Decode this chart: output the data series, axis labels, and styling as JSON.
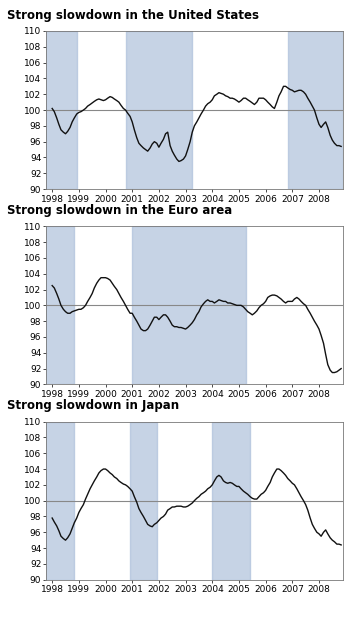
{
  "titles": [
    "Strong slowdown in the United States",
    "Strong slowdown in the Euro area",
    "Strong slowdown in Japan"
  ],
  "ylim": [
    90,
    110
  ],
  "yticks": [
    90,
    92,
    94,
    96,
    98,
    100,
    102,
    104,
    106,
    108,
    110
  ],
  "xlim": [
    1997.75,
    2008.9
  ],
  "xticks": [
    1998,
    1999,
    2000,
    2001,
    2002,
    2003,
    2004,
    2005,
    2006,
    2007,
    2008
  ],
  "shade_color": "#a8bcd8",
  "line_color": "#111111",
  "hline_color": "#888888",
  "bg_color": "#ffffff",
  "panel_bg": "#ffffff",
  "shading": [
    [
      [
        1997.75,
        1998.92
      ],
      [
        2000.75,
        2003.25
      ],
      [
        2006.83,
        2008.9
      ]
    ],
    [
      [
        1997.75,
        1998.83
      ],
      [
        2001.0,
        2005.25
      ]
    ],
    [
      [
        1997.75,
        1998.83
      ],
      [
        2000.92,
        2001.92
      ],
      [
        2004.0,
        2005.42
      ]
    ]
  ],
  "us_data": {
    "x": [
      1998.0,
      1998.08,
      1998.17,
      1998.25,
      1998.33,
      1998.42,
      1998.5,
      1998.58,
      1998.67,
      1998.75,
      1998.83,
      1998.92,
      1999.0,
      1999.08,
      1999.17,
      1999.25,
      1999.33,
      1999.42,
      1999.5,
      1999.58,
      1999.67,
      1999.75,
      1999.83,
      1999.92,
      2000.0,
      2000.08,
      2000.17,
      2000.25,
      2000.33,
      2000.42,
      2000.5,
      2000.58,
      2000.67,
      2000.75,
      2000.83,
      2000.92,
      2001.0,
      2001.08,
      2001.17,
      2001.25,
      2001.33,
      2001.42,
      2001.5,
      2001.58,
      2001.67,
      2001.75,
      2001.83,
      2001.92,
      2002.0,
      2002.08,
      2002.17,
      2002.25,
      2002.33,
      2002.42,
      2002.5,
      2002.58,
      2002.67,
      2002.75,
      2002.83,
      2002.92,
      2003.0,
      2003.08,
      2003.17,
      2003.25,
      2003.33,
      2003.42,
      2003.5,
      2003.58,
      2003.67,
      2003.75,
      2003.83,
      2003.92,
      2004.0,
      2004.08,
      2004.17,
      2004.25,
      2004.33,
      2004.42,
      2004.5,
      2004.58,
      2004.67,
      2004.75,
      2004.83,
      2004.92,
      2005.0,
      2005.08,
      2005.17,
      2005.25,
      2005.33,
      2005.42,
      2005.5,
      2005.58,
      2005.67,
      2005.75,
      2005.83,
      2005.92,
      2006.0,
      2006.08,
      2006.17,
      2006.25,
      2006.33,
      2006.42,
      2006.5,
      2006.58,
      2006.67,
      2006.75,
      2006.83,
      2006.92,
      2007.0,
      2007.08,
      2007.17,
      2007.25,
      2007.33,
      2007.42,
      2007.5,
      2007.58,
      2007.67,
      2007.75,
      2007.83,
      2007.92,
      2008.0,
      2008.08,
      2008.17,
      2008.25,
      2008.33,
      2008.42,
      2008.5,
      2008.58,
      2008.67,
      2008.75,
      2008.83
    ],
    "y": [
      100.2,
      99.8,
      99.0,
      98.2,
      97.5,
      97.2,
      97.0,
      97.3,
      97.8,
      98.5,
      99.0,
      99.5,
      99.7,
      99.8,
      100.0,
      100.2,
      100.5,
      100.7,
      100.9,
      101.1,
      101.3,
      101.4,
      101.3,
      101.2,
      101.3,
      101.5,
      101.7,
      101.6,
      101.4,
      101.2,
      101.0,
      100.6,
      100.2,
      100.0,
      99.6,
      99.2,
      98.5,
      97.5,
      96.5,
      95.8,
      95.5,
      95.2,
      95.0,
      94.8,
      95.2,
      95.7,
      96.0,
      95.8,
      95.3,
      95.8,
      96.3,
      97.0,
      97.2,
      95.5,
      94.8,
      94.3,
      93.8,
      93.5,
      93.6,
      93.8,
      94.2,
      95.0,
      96.0,
      97.2,
      98.0,
      98.5,
      99.0,
      99.5,
      100.0,
      100.5,
      100.8,
      101.0,
      101.3,
      101.8,
      102.0,
      102.2,
      102.1,
      102.0,
      101.8,
      101.7,
      101.5,
      101.5,
      101.4,
      101.2,
      101.0,
      101.2,
      101.5,
      101.5,
      101.3,
      101.1,
      100.9,
      100.7,
      101.0,
      101.5,
      101.5,
      101.5,
      101.3,
      101.0,
      100.7,
      100.4,
      100.2,
      101.0,
      101.8,
      102.3,
      103.0,
      103.0,
      102.8,
      102.6,
      102.5,
      102.3,
      102.4,
      102.5,
      102.5,
      102.3,
      102.0,
      101.5,
      101.0,
      100.5,
      100.0,
      99.0,
      98.2,
      97.8,
      98.2,
      98.5,
      97.8,
      96.8,
      96.2,
      95.8,
      95.5,
      95.5,
      95.4
    ]
  },
  "euro_data": {
    "x": [
      1998.0,
      1998.08,
      1998.17,
      1998.25,
      1998.33,
      1998.42,
      1998.5,
      1998.58,
      1998.67,
      1998.75,
      1998.83,
      1998.92,
      1999.0,
      1999.08,
      1999.17,
      1999.25,
      1999.33,
      1999.42,
      1999.5,
      1999.58,
      1999.67,
      1999.75,
      1999.83,
      1999.92,
      2000.0,
      2000.08,
      2000.17,
      2000.25,
      2000.33,
      2000.42,
      2000.5,
      2000.58,
      2000.67,
      2000.75,
      2000.83,
      2000.92,
      2001.0,
      2001.08,
      2001.17,
      2001.25,
      2001.33,
      2001.42,
      2001.5,
      2001.58,
      2001.67,
      2001.75,
      2001.83,
      2001.92,
      2002.0,
      2002.08,
      2002.17,
      2002.25,
      2002.33,
      2002.42,
      2002.5,
      2002.58,
      2002.67,
      2002.75,
      2002.83,
      2002.92,
      2003.0,
      2003.08,
      2003.17,
      2003.25,
      2003.33,
      2003.42,
      2003.5,
      2003.58,
      2003.67,
      2003.75,
      2003.83,
      2003.92,
      2004.0,
      2004.08,
      2004.17,
      2004.25,
      2004.33,
      2004.42,
      2004.5,
      2004.58,
      2004.67,
      2004.75,
      2004.83,
      2004.92,
      2005.0,
      2005.08,
      2005.17,
      2005.25,
      2005.33,
      2005.42,
      2005.5,
      2005.58,
      2005.67,
      2005.75,
      2005.83,
      2005.92,
      2006.0,
      2006.08,
      2006.17,
      2006.25,
      2006.33,
      2006.42,
      2006.5,
      2006.58,
      2006.67,
      2006.75,
      2006.83,
      2006.92,
      2007.0,
      2007.08,
      2007.17,
      2007.25,
      2007.33,
      2007.42,
      2007.5,
      2007.58,
      2007.67,
      2007.75,
      2007.83,
      2007.92,
      2008.0,
      2008.08,
      2008.17,
      2008.25,
      2008.33,
      2008.42,
      2008.5,
      2008.58,
      2008.67,
      2008.75,
      2008.83
    ],
    "y": [
      102.5,
      102.2,
      101.5,
      100.8,
      100.0,
      99.5,
      99.2,
      99.0,
      99.0,
      99.2,
      99.3,
      99.4,
      99.5,
      99.5,
      99.7,
      100.0,
      100.5,
      101.0,
      101.5,
      102.2,
      102.8,
      103.2,
      103.5,
      103.5,
      103.5,
      103.4,
      103.2,
      102.8,
      102.4,
      102.0,
      101.5,
      101.0,
      100.5,
      100.0,
      99.5,
      99.0,
      99.0,
      98.5,
      98.0,
      97.5,
      97.0,
      96.8,
      96.8,
      97.0,
      97.5,
      98.0,
      98.5,
      98.5,
      98.2,
      98.5,
      98.8,
      98.8,
      98.5,
      98.0,
      97.5,
      97.3,
      97.3,
      97.2,
      97.2,
      97.1,
      97.0,
      97.2,
      97.5,
      97.8,
      98.2,
      98.8,
      99.2,
      99.8,
      100.2,
      100.5,
      100.7,
      100.5,
      100.5,
      100.3,
      100.5,
      100.7,
      100.6,
      100.5,
      100.5,
      100.3,
      100.3,
      100.2,
      100.1,
      100.0,
      100.0,
      100.0,
      99.8,
      99.5,
      99.2,
      99.0,
      98.8,
      99.0,
      99.3,
      99.7,
      100.0,
      100.2,
      100.5,
      101.0,
      101.2,
      101.3,
      101.3,
      101.2,
      101.0,
      100.8,
      100.5,
      100.3,
      100.5,
      100.5,
      100.5,
      100.8,
      101.0,
      100.8,
      100.5,
      100.2,
      100.0,
      99.5,
      99.0,
      98.5,
      98.0,
      97.5,
      97.0,
      96.2,
      95.2,
      93.8,
      92.5,
      91.8,
      91.5,
      91.5,
      91.6,
      91.8,
      92.0
    ]
  },
  "japan_data": {
    "x": [
      1998.0,
      1998.08,
      1998.17,
      1998.25,
      1998.33,
      1998.42,
      1998.5,
      1998.58,
      1998.67,
      1998.75,
      1998.83,
      1998.92,
      1999.0,
      1999.08,
      1999.17,
      1999.25,
      1999.33,
      1999.42,
      1999.5,
      1999.58,
      1999.67,
      1999.75,
      1999.83,
      1999.92,
      2000.0,
      2000.08,
      2000.17,
      2000.25,
      2000.33,
      2000.42,
      2000.5,
      2000.58,
      2000.67,
      2000.75,
      2000.83,
      2000.92,
      2001.0,
      2001.08,
      2001.17,
      2001.25,
      2001.33,
      2001.42,
      2001.5,
      2001.58,
      2001.67,
      2001.75,
      2001.83,
      2001.92,
      2002.0,
      2002.08,
      2002.17,
      2002.25,
      2002.33,
      2002.42,
      2002.5,
      2002.58,
      2002.67,
      2002.75,
      2002.83,
      2002.92,
      2003.0,
      2003.08,
      2003.17,
      2003.25,
      2003.33,
      2003.42,
      2003.5,
      2003.58,
      2003.67,
      2003.75,
      2003.83,
      2003.92,
      2004.0,
      2004.08,
      2004.17,
      2004.25,
      2004.33,
      2004.42,
      2004.5,
      2004.58,
      2004.67,
      2004.75,
      2004.83,
      2004.92,
      2005.0,
      2005.08,
      2005.17,
      2005.25,
      2005.33,
      2005.42,
      2005.5,
      2005.58,
      2005.67,
      2005.75,
      2005.83,
      2005.92,
      2006.0,
      2006.08,
      2006.17,
      2006.25,
      2006.33,
      2006.42,
      2006.5,
      2006.58,
      2006.67,
      2006.75,
      2006.83,
      2006.92,
      2007.0,
      2007.08,
      2007.17,
      2007.25,
      2007.33,
      2007.42,
      2007.5,
      2007.58,
      2007.67,
      2007.75,
      2007.83,
      2007.92,
      2008.0,
      2008.08,
      2008.17,
      2008.25,
      2008.33,
      2008.42,
      2008.5,
      2008.58,
      2008.67,
      2008.75,
      2008.83
    ],
    "y": [
      97.8,
      97.3,
      96.8,
      96.2,
      95.5,
      95.2,
      95.0,
      95.3,
      95.8,
      96.5,
      97.2,
      97.8,
      98.5,
      99.0,
      99.5,
      100.2,
      100.8,
      101.5,
      102.0,
      102.5,
      103.0,
      103.5,
      103.8,
      104.0,
      104.0,
      103.8,
      103.5,
      103.3,
      103.0,
      102.8,
      102.5,
      102.3,
      102.1,
      102.0,
      101.8,
      101.5,
      101.2,
      100.5,
      99.8,
      99.0,
      98.5,
      98.0,
      97.5,
      97.0,
      96.8,
      96.7,
      97.0,
      97.2,
      97.5,
      97.8,
      98.0,
      98.3,
      98.8,
      99.0,
      99.2,
      99.2,
      99.3,
      99.3,
      99.3,
      99.2,
      99.2,
      99.3,
      99.5,
      99.7,
      100.0,
      100.3,
      100.5,
      100.8,
      101.0,
      101.2,
      101.5,
      101.7,
      102.0,
      102.5,
      103.0,
      103.2,
      103.0,
      102.5,
      102.3,
      102.2,
      102.3,
      102.2,
      102.0,
      101.8,
      101.8,
      101.5,
      101.2,
      101.0,
      100.8,
      100.5,
      100.3,
      100.2,
      100.2,
      100.5,
      100.8,
      101.0,
      101.3,
      101.8,
      102.3,
      103.0,
      103.5,
      104.0,
      104.0,
      103.8,
      103.5,
      103.2,
      102.8,
      102.5,
      102.2,
      102.0,
      101.5,
      101.0,
      100.5,
      100.0,
      99.5,
      98.8,
      97.8,
      97.0,
      96.5,
      96.0,
      95.8,
      95.5,
      96.0,
      96.3,
      95.8,
      95.3,
      95.0,
      94.8,
      94.5,
      94.5,
      94.4
    ]
  }
}
